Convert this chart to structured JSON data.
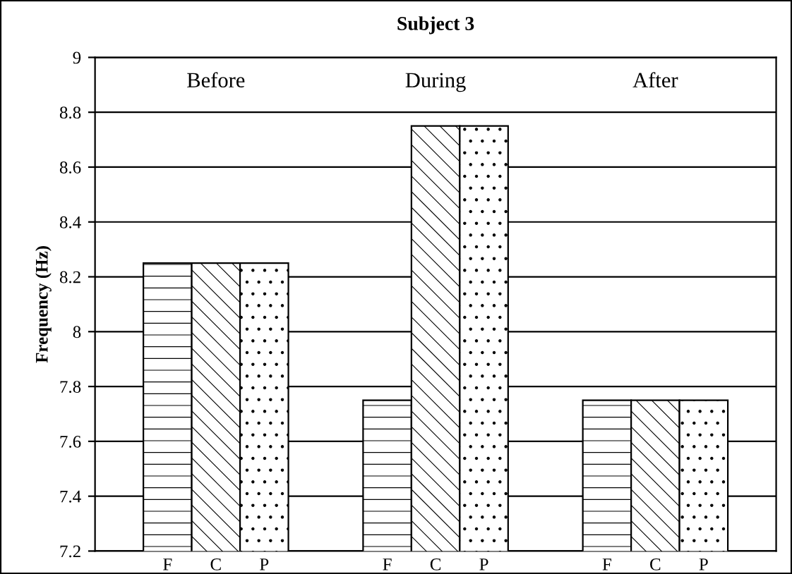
{
  "chart_data": {
    "type": "bar",
    "title": "Subject 3",
    "ylabel": "Frequency (Hz)",
    "categories": [
      "Before",
      "During",
      "After"
    ],
    "series": [
      {
        "name": "F",
        "color": "#000000",
        "values": [
          8.25,
          7.75,
          7.75
        ]
      },
      {
        "name": "C",
        "color": "#000000",
        "values": [
          8.25,
          8.75,
          7.75
        ]
      },
      {
        "name": "P",
        "color": "#000000",
        "values": [
          8.25,
          8.75,
          7.75
        ]
      }
    ],
    "ylim": [
      7.2,
      9
    ],
    "yticks": [
      7.2,
      7.4,
      7.6,
      7.8,
      8,
      8.2,
      8.4,
      8.6,
      8.8,
      9
    ],
    "grid": "y",
    "legend": false
  }
}
